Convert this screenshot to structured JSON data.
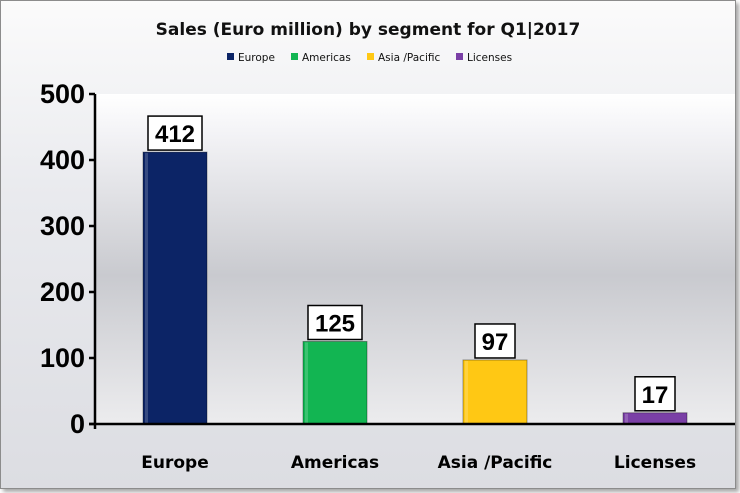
{
  "chart_data": {
    "type": "bar",
    "title": "Sales (Euro million) by segment for Q1|2017",
    "categories": [
      "Europe",
      "Americas",
      "Asia /Pacific",
      "Licenses"
    ],
    "values": [
      412,
      125,
      97,
      17
    ],
    "colors": [
      "#0c2466",
      "#12b552",
      "#ffc814",
      "#7a3fa6"
    ],
    "legend": [
      "Europe",
      "Americas",
      "Asia /Pacific",
      "Licenses"
    ],
    "legend_position": "top",
    "ylim": [
      0,
      500
    ],
    "yticks": [
      0,
      100,
      200,
      300,
      400,
      500
    ],
    "grid": false,
    "xlabel": "",
    "ylabel": ""
  }
}
